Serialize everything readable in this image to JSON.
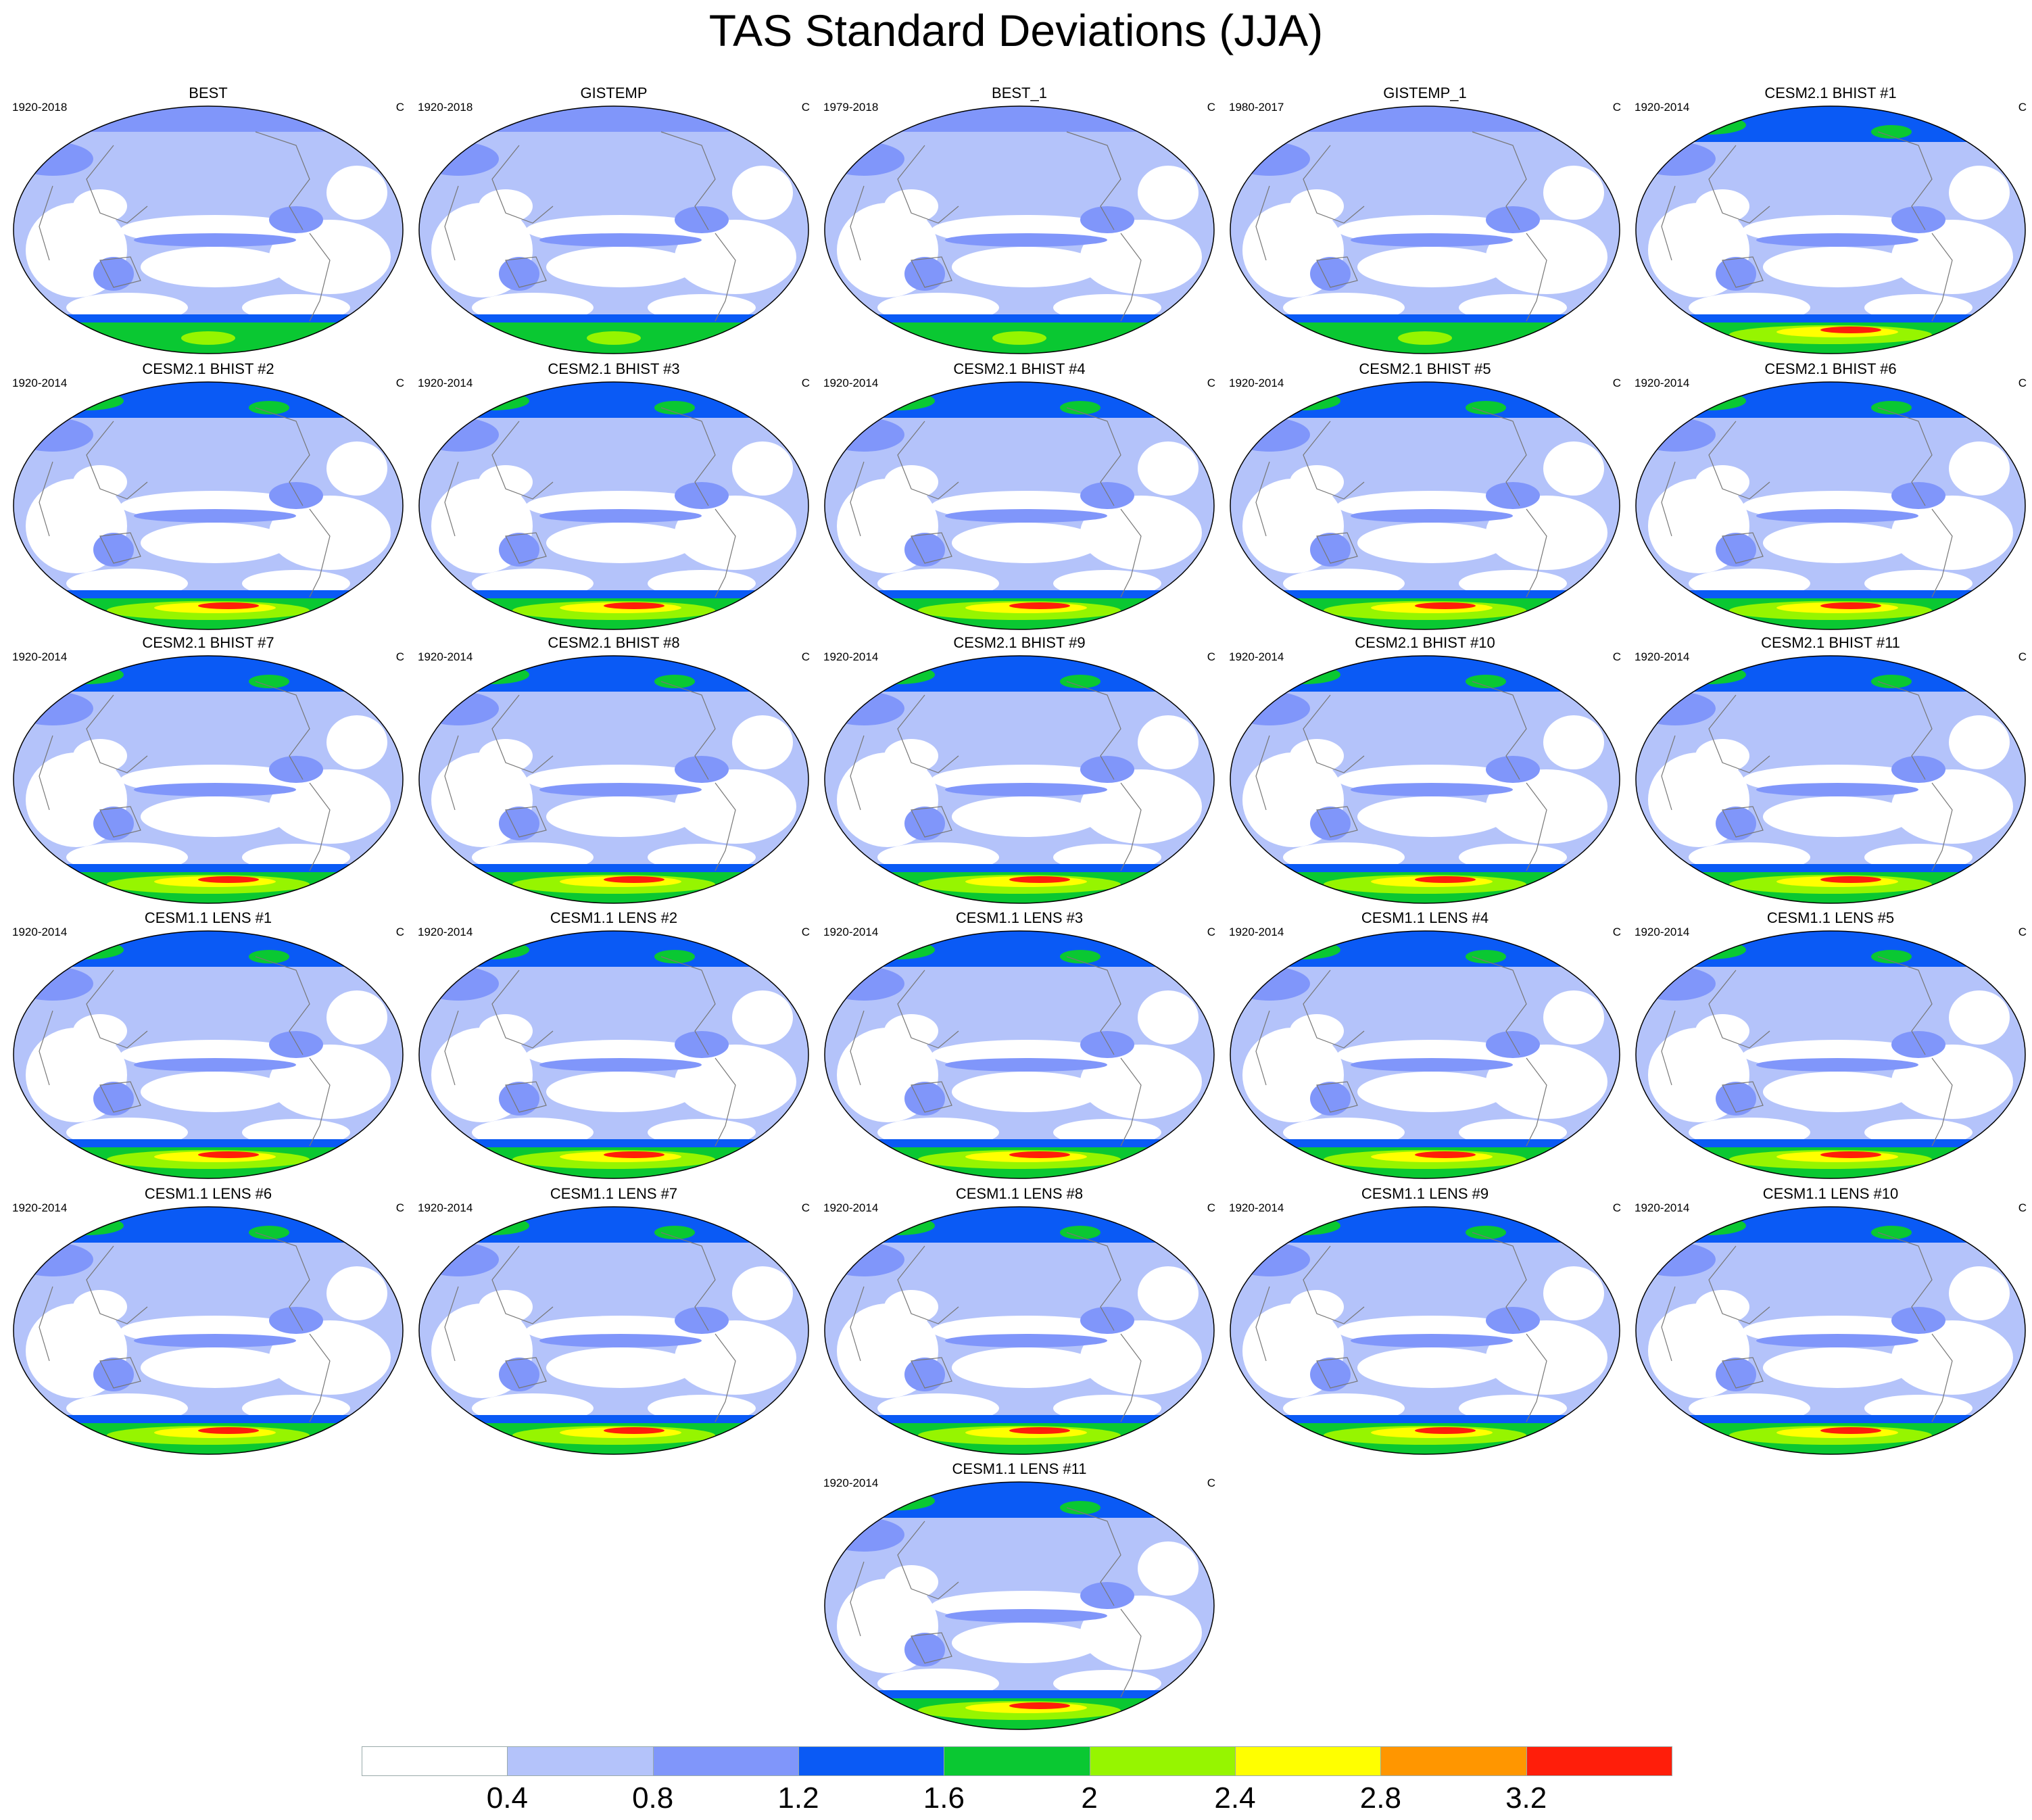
{
  "title": "TAS Standard Deviations (JJA)",
  "unit": "C",
  "panels": [
    {
      "title": "BEST",
      "period": "1920-2018",
      "style": "obs"
    },
    {
      "title": "GISTEMP",
      "period": "1920-2018",
      "style": "obs"
    },
    {
      "title": "BEST_1",
      "period": "1979-2018",
      "style": "obs"
    },
    {
      "title": "GISTEMP_1",
      "period": "1980-2017",
      "style": "obs"
    },
    {
      "title": "CESM2.1 BHIST #1",
      "period": "1920-2014",
      "style": "cesm2"
    },
    {
      "title": "CESM2.1 BHIST #2",
      "period": "1920-2014",
      "style": "cesm2"
    },
    {
      "title": "CESM2.1 BHIST #3",
      "period": "1920-2014",
      "style": "cesm2"
    },
    {
      "title": "CESM2.1 BHIST #4",
      "period": "1920-2014",
      "style": "cesm2"
    },
    {
      "title": "CESM2.1 BHIST #5",
      "period": "1920-2014",
      "style": "cesm2"
    },
    {
      "title": "CESM2.1 BHIST #6",
      "period": "1920-2014",
      "style": "cesm2"
    },
    {
      "title": "CESM2.1 BHIST #7",
      "period": "1920-2014",
      "style": "cesm2"
    },
    {
      "title": "CESM2.1 BHIST #8",
      "period": "1920-2014",
      "style": "cesm2"
    },
    {
      "title": "CESM2.1 BHIST #9",
      "period": "1920-2014",
      "style": "cesm2"
    },
    {
      "title": "CESM2.1 BHIST #10",
      "period": "1920-2014",
      "style": "cesm2"
    },
    {
      "title": "CESM2.1 BHIST #11",
      "period": "1920-2014",
      "style": "cesm2"
    },
    {
      "title": "CESM1.1 LENS #1",
      "period": "1920-2014",
      "style": "cesm1"
    },
    {
      "title": "CESM1.1 LENS #2",
      "period": "1920-2014",
      "style": "cesm1"
    },
    {
      "title": "CESM1.1 LENS #3",
      "period": "1920-2014",
      "style": "cesm1"
    },
    {
      "title": "CESM1.1 LENS #4",
      "period": "1920-2014",
      "style": "cesm1"
    },
    {
      "title": "CESM1.1 LENS #5",
      "period": "1920-2014",
      "style": "cesm1"
    },
    {
      "title": "CESM1.1 LENS #6",
      "period": "1920-2014",
      "style": "cesm1"
    },
    {
      "title": "CESM1.1 LENS #7",
      "period": "1920-2014",
      "style": "cesm1"
    },
    {
      "title": "CESM1.1 LENS #8",
      "period": "1920-2014",
      "style": "cesm1"
    },
    {
      "title": "CESM1.1 LENS #9",
      "period": "1920-2014",
      "style": "cesm1"
    },
    {
      "title": "CESM1.1 LENS #10",
      "period": "1920-2014",
      "style": "cesm1"
    },
    {
      "title": "CESM1.1 LENS #11",
      "period": "1920-2014",
      "style": "cesm1"
    }
  ],
  "colorbar": {
    "colors": [
      "#ffffff",
      "#b4c3fa",
      "#8096fa",
      "#0a5af5",
      "#0ac832",
      "#96f500",
      "#ffff00",
      "#ff9600",
      "#ff1e0a"
    ],
    "labels": [
      "0.4",
      "0.8",
      "1.2",
      "1.6",
      "2",
      "2.4",
      "2.8",
      "3.2"
    ]
  }
}
